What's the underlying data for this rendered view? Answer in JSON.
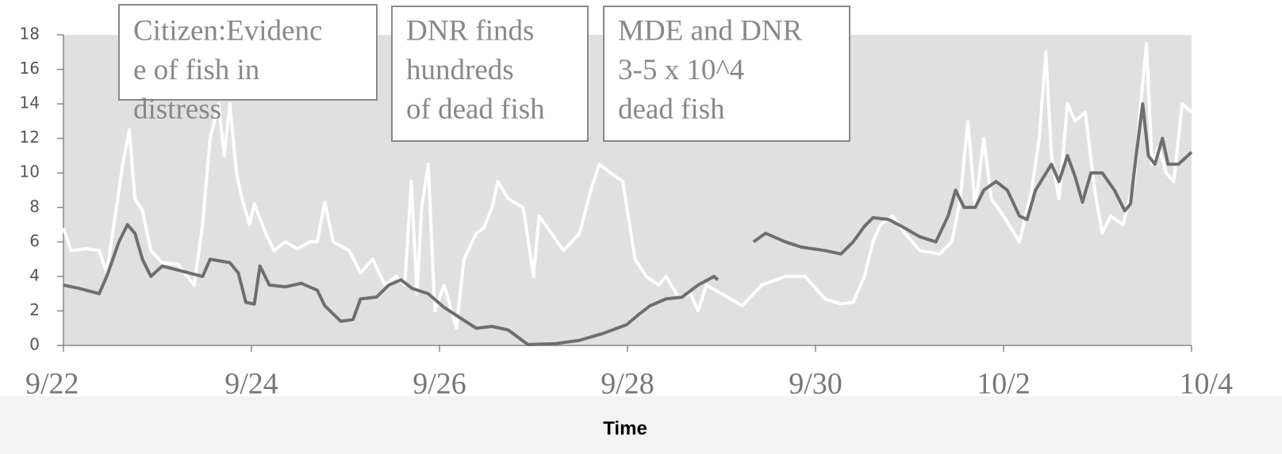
{
  "chart_data": {
    "type": "line",
    "xlabel": "Time",
    "xlim": [
      0,
      12
    ],
    "xticks": [
      {
        "value": 0,
        "label": "9/22"
      },
      {
        "value": 2,
        "label": "9/24"
      },
      {
        "value": 4,
        "label": "9/26"
      },
      {
        "value": 6,
        "label": "9/28"
      },
      {
        "value": 8,
        "label": "9/30"
      },
      {
        "value": 10,
        "label": "10/2"
      },
      {
        "value": 12,
        "label": "10/4"
      }
    ],
    "ylim": [
      0,
      18
    ],
    "yticks": [
      0,
      2,
      4,
      6,
      8,
      10,
      12,
      14,
      16,
      18
    ],
    "grid": false,
    "series": [
      {
        "color": "#ffffff",
        "x": [
          0,
          0.08,
          0.25,
          0.38,
          0.46,
          0.55,
          0.63,
          0.7,
          0.76,
          0.84,
          0.93,
          1.05,
          1.22,
          1.39,
          1.48,
          1.56,
          1.65,
          1.71,
          1.77,
          1.84,
          1.9,
          1.98,
          2.03,
          2.15,
          2.24,
          2.36,
          2.49,
          2.62,
          2.7,
          2.78,
          2.87,
          3.04,
          3.16,
          3.29,
          3.42,
          3.54,
          3.63,
          3.7,
          3.76,
          3.81,
          3.88,
          3.95,
          4.05,
          4.18,
          4.26,
          4.39,
          4.47,
          4.56,
          4.62,
          4.73,
          4.89,
          5.0,
          5.06,
          5.19,
          5.32,
          5.49,
          5.61,
          5.7,
          5.82,
          5.95,
          6.08,
          6.2,
          6.33,
          6.41,
          6.54,
          6.67,
          6.75,
          6.84,
          7.0,
          7.22,
          7.43,
          7.68,
          7.89,
          8.1,
          8.27,
          8.4,
          8.52,
          8.61,
          8.69,
          8.82,
          8.95,
          9.11,
          9.32,
          9.45,
          9.54,
          9.62,
          9.7,
          9.79,
          9.87,
          10.0,
          10.17,
          10.3,
          10.38,
          10.45,
          10.51,
          10.59,
          10.68,
          10.76,
          10.87,
          10.97,
          11.05,
          11.14,
          11.27,
          11.39,
          11.46,
          11.52,
          11.58,
          11.65,
          11.73,
          11.81,
          11.9,
          12
        ],
        "values": [
          6.8,
          5.5,
          5.6,
          5.5,
          4.2,
          7.5,
          10.5,
          12.5,
          8.5,
          7.8,
          5.5,
          4.8,
          4.7,
          3.5,
          7.0,
          12.0,
          14.0,
          11.0,
          14.0,
          10.0,
          8.5,
          7.0,
          8.2,
          6.5,
          5.5,
          6.0,
          5.6,
          6.0,
          6.0,
          8.3,
          6.0,
          5.5,
          4.2,
          5.0,
          3.5,
          4.0,
          3.5,
          9.5,
          3.0,
          8.0,
          10.5,
          2.0,
          3.5,
          1.0,
          5.0,
          6.5,
          6.8,
          8.0,
          9.5,
          8.5,
          8.0,
          4.0,
          7.5,
          6.5,
          5.5,
          6.5,
          9.0,
          10.5,
          10.0,
          9.5,
          5.0,
          4.0,
          3.5,
          4.0,
          2.8,
          3.0,
          2.0,
          3.5,
          3.0,
          2.3,
          3.5,
          4.0,
          4.0,
          2.7,
          2.4,
          2.5,
          4.0,
          6.0,
          7.0,
          7.5,
          6.5,
          5.5,
          5.3,
          6.0,
          8.5,
          13.0,
          8.0,
          12.0,
          8.5,
          7.5,
          6.0,
          9.0,
          12.0,
          17.0,
          11.0,
          8.5,
          14.0,
          13.0,
          13.5,
          9.0,
          6.5,
          7.5,
          7.0,
          9.5,
          14.0,
          17.5,
          10.5,
          11.5,
          10.0,
          9.5,
          14.0,
          13.5
        ]
      },
      {
        "color": "#6e6e6e",
        "x": [
          0,
          0.17,
          0.38,
          0.46,
          0.59,
          0.68,
          0.76,
          0.84,
          0.93,
          1.05,
          1.27,
          1.48,
          1.56,
          1.77,
          1.86,
          1.94,
          2.03,
          2.09,
          2.19,
          2.36,
          2.53,
          2.7,
          2.78,
          2.95,
          3.08,
          3.16,
          3.33,
          3.46,
          3.59,
          3.71,
          3.88,
          4.05,
          4.22,
          4.39,
          4.56,
          4.73,
          4.94,
          5.23,
          5.49,
          5.74,
          5.99,
          6.12,
          6.24,
          6.41,
          6.58,
          6.75,
          6.92,
          6.96,
          7.15,
          7.34,
          7.47,
          7.68,
          7.85,
          8.1,
          8.27,
          8.4,
          8.52,
          8.61,
          8.78,
          8.95,
          9.11,
          9.28,
          9.41,
          9.49,
          9.58,
          9.7,
          9.79,
          9.92,
          10.04,
          10.17,
          10.25,
          10.34,
          10.51,
          10.59,
          10.68,
          10.76,
          10.84,
          10.93,
          11.05,
          11.18,
          11.29,
          11.35,
          11.41,
          11.48,
          11.54,
          11.61,
          11.69,
          11.75,
          11.86,
          12
        ],
        "values": [
          3.5,
          3.3,
          3.0,
          4.0,
          6.0,
          7.0,
          6.5,
          5.0,
          4.0,
          4.6,
          4.3,
          4.0,
          5.0,
          4.8,
          4.2,
          2.5,
          2.4,
          4.6,
          3.5,
          3.4,
          3.6,
          3.2,
          2.3,
          1.4,
          1.5,
          2.7,
          2.8,
          3.5,
          3.8,
          3.3,
          3.0,
          2.2,
          1.6,
          1.0,
          1.1,
          0.9,
          0.05,
          0.1,
          0.3,
          0.7,
          1.2,
          1.8,
          2.3,
          2.7,
          2.8,
          3.5,
          4.0,
          3.8,
          null,
          6.0,
          6.5,
          6.0,
          5.7,
          5.5,
          5.3,
          6.0,
          6.9,
          7.4,
          7.3,
          6.8,
          6.3,
          6.0,
          7.5,
          9.0,
          8.0,
          8.0,
          9.0,
          9.5,
          9.0,
          7.5,
          7.3,
          9.0,
          10.5,
          9.5,
          11.0,
          9.8,
          8.3,
          10.0,
          10.0,
          9.0,
          7.8,
          8.2,
          11.0,
          14.0,
          11.0,
          10.5,
          12.0,
          10.5,
          10.5,
          11.2
        ]
      }
    ],
    "annotations": [
      {
        "lines": [
          "Citizen:Evidenc",
          "e of fish in",
          "distress"
        ]
      },
      {
        "lines": [
          "DNR finds",
          "hundreds",
          "of dead fish"
        ]
      },
      {
        "lines": [
          "MDE and DNR",
          "3-5 x 10^4",
          "dead fish"
        ]
      }
    ]
  }
}
